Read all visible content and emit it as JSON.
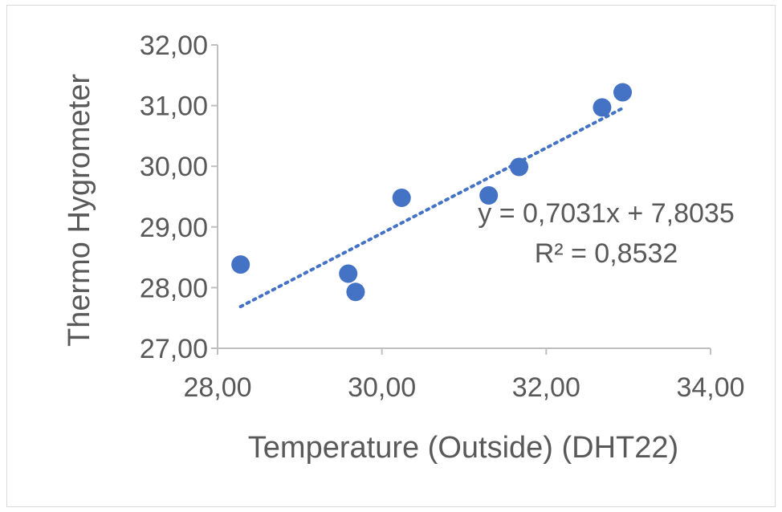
{
  "chart_data": {
    "type": "scatter",
    "title": "",
    "xlabel": "Temperature (Outside) (DHT22)",
    "ylabel": "Thermo Hygrometer",
    "xlim": [
      28,
      34
    ],
    "ylim": [
      27,
      32
    ],
    "x_ticks": [
      "28,00",
      "30,00",
      "32,00",
      "34,00"
    ],
    "y_ticks": [
      "27,00",
      "28,00",
      "29,00",
      "30,00",
      "31,00",
      "32,00"
    ],
    "grid": false,
    "legend": "none",
    "series": [
      {
        "color": "#4472c4",
        "points": [
          {
            "x": 28.28,
            "y": 28.38
          },
          {
            "x": 29.59,
            "y": 28.23
          },
          {
            "x": 29.68,
            "y": 27.93
          },
          {
            "x": 30.24,
            "y": 29.48
          },
          {
            "x": 31.3,
            "y": 29.52
          },
          {
            "x": 31.67,
            "y": 29.99
          },
          {
            "x": 32.68,
            "y": 30.97
          },
          {
            "x": 32.93,
            "y": 31.22
          }
        ]
      }
    ],
    "trendline": {
      "type": "linear",
      "style": "dotted",
      "color": "#4472c4",
      "slope": 0.7031,
      "intercept": 7.8035,
      "x_start": 28.28,
      "x_end": 32.93
    },
    "annotations": {
      "equation": "y = 0,7031x + 7,8035",
      "r_squared": "R² = 0,8532"
    }
  }
}
